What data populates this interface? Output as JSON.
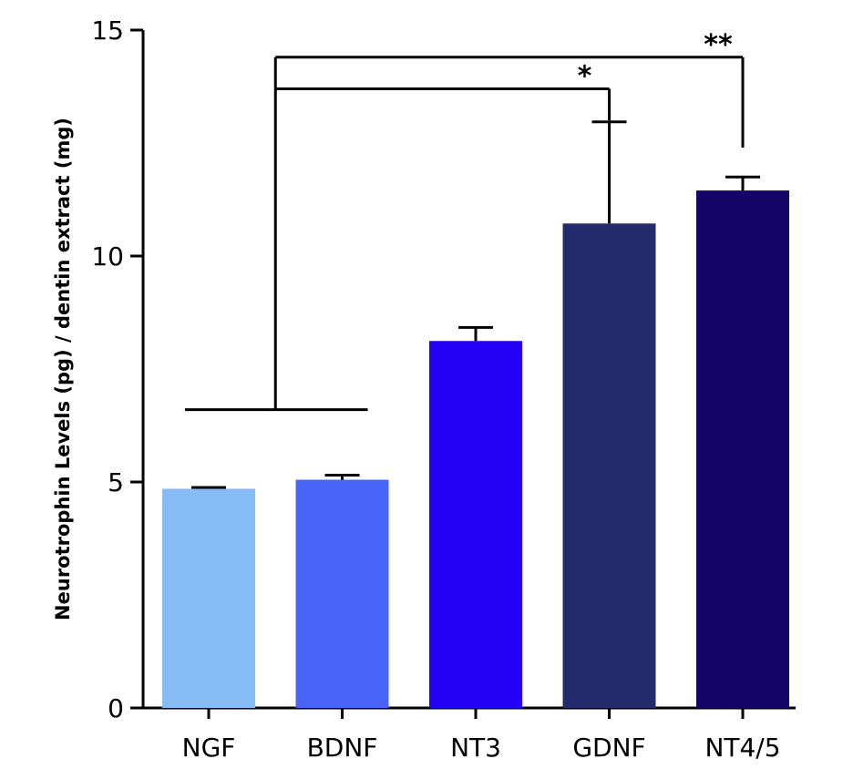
{
  "chart_data": {
    "type": "bar",
    "title": "",
    "xlabel": "",
    "ylabel": "Neurotrophin Levels (pg) / dentin extract (mg)",
    "ylim": [
      0,
      15
    ],
    "yticks": [
      0,
      5,
      10,
      15
    ],
    "yticks_text": [
      "0",
      "5",
      "10",
      "15"
    ],
    "categories": [
      "NGF",
      "BDNF",
      "NT3",
      "GDNF",
      "NT4/5"
    ],
    "values": [
      4.85,
      5.05,
      8.12,
      10.72,
      11.45
    ],
    "errors": [
      0.03,
      0.1,
      0.3,
      2.25,
      0.3
    ],
    "colors": [
      "#85bcf6",
      "#4863f7",
      "#2400f7",
      "#222b6b",
      "#140467"
    ],
    "significance": [
      {
        "label": "*",
        "from_group": [
          "NGF",
          "BDNF"
        ],
        "to": "GDNF",
        "level": 13.7,
        "drop_to": 13.0
      },
      {
        "label": "**",
        "from_group": [
          "NGF",
          "BDNF"
        ],
        "to": "NT4/5",
        "level": 14.4,
        "drop_to": 12.4
      }
    ],
    "group_bracket_level": 6.6
  }
}
